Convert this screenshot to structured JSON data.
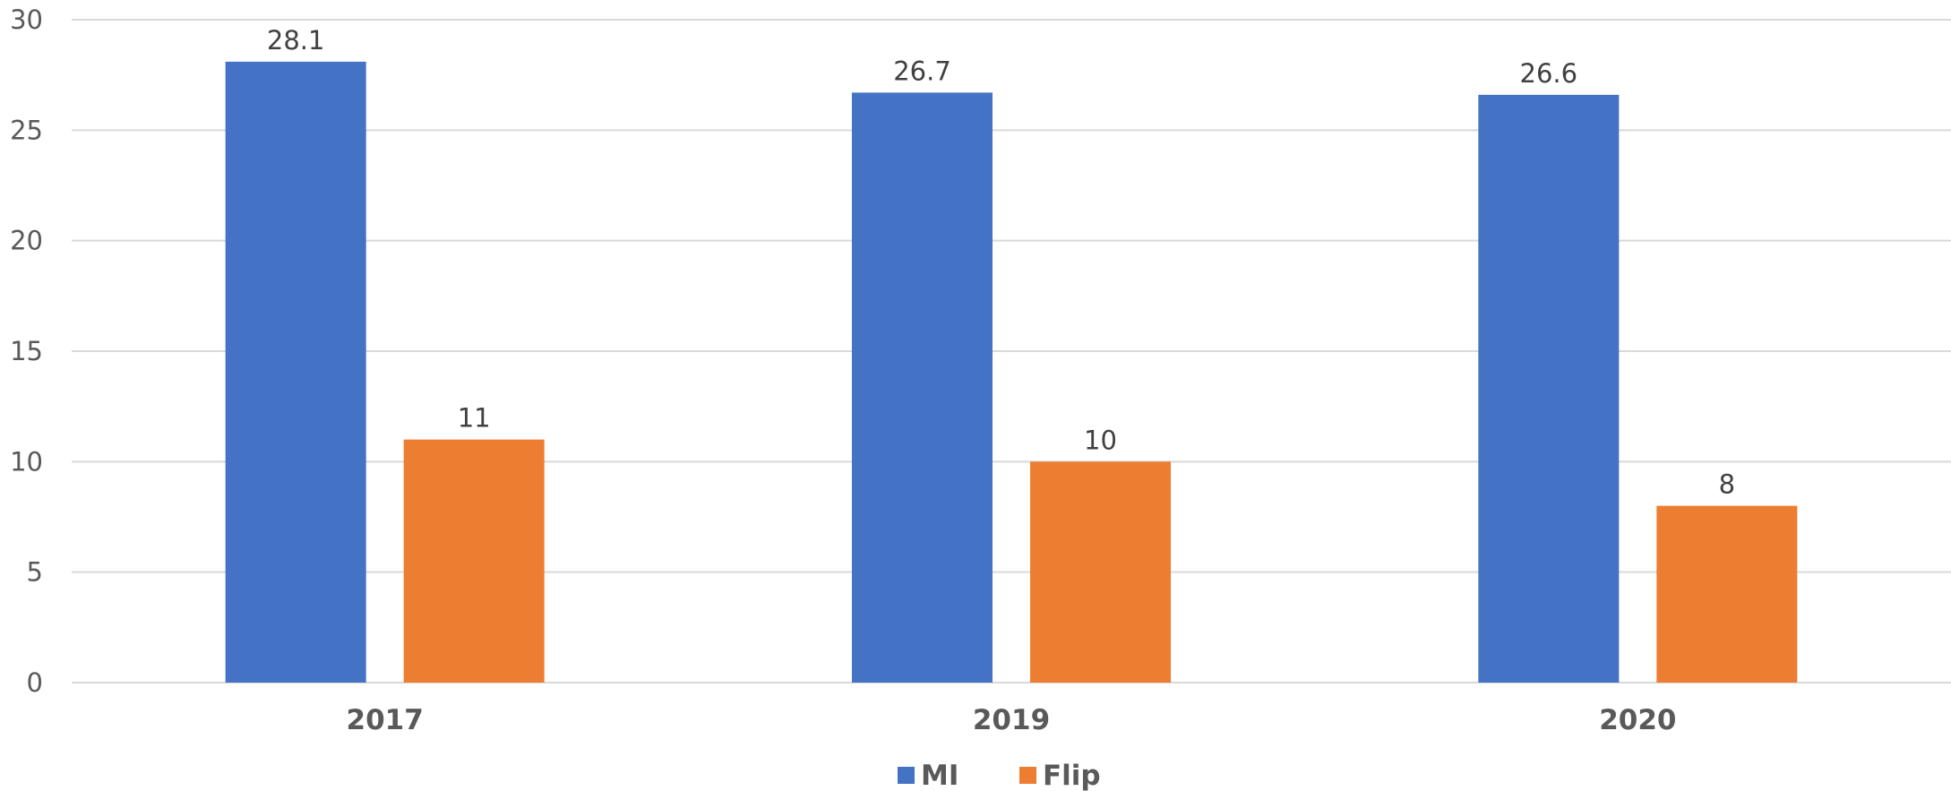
{
  "chart_data": {
    "type": "bar",
    "categories": [
      "2017",
      "2019",
      "2020"
    ],
    "series": [
      {
        "name": "MI",
        "color": "#4472c4",
        "values": [
          28.1,
          26.7,
          26.6
        ]
      },
      {
        "name": "Flip",
        "color": "#ed7d31",
        "values": [
          11,
          10,
          8
        ]
      }
    ],
    "data_labels": [
      [
        "28.1",
        "26.7",
        "26.6"
      ],
      [
        "11",
        "10",
        "8"
      ]
    ],
    "ylim": [
      0,
      30
    ],
    "yticks": [
      0,
      5,
      10,
      15,
      20,
      25,
      30
    ],
    "grid": true,
    "legend": "bottom-center",
    "title": "",
    "xlabel": "",
    "ylabel": ""
  }
}
